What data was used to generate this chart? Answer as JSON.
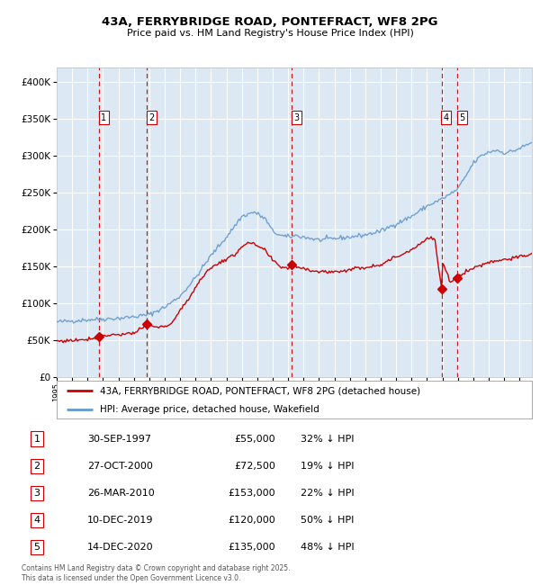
{
  "title": "43A, FERRYBRIDGE ROAD, PONTEFRACT, WF8 2PG",
  "subtitle": "Price paid vs. HM Land Registry's House Price Index (HPI)",
  "footer": "Contains HM Land Registry data © Crown copyright and database right 2025.\nThis data is licensed under the Open Government Licence v3.0.",
  "legend_property": "43A, FERRYBRIDGE ROAD, PONTEFRACT, WF8 2PG (detached house)",
  "legend_hpi": "HPI: Average price, detached house, Wakefield",
  "background_color": "#dce9f5",
  "plot_bg_color": "#dce9f5",
  "grid_color": "#ffffff",
  "property_color": "#cc0000",
  "hpi_color": "#6699cc",
  "vline_color": "#cc0000",
  "transactions": [
    {
      "id": 1,
      "date_x": 1997.75,
      "price": 55000
    },
    {
      "id": 2,
      "date_x": 2000.83,
      "price": 72500
    },
    {
      "id": 3,
      "date_x": 2010.23,
      "price": 153000
    },
    {
      "id": 4,
      "date_x": 2019.94,
      "price": 120000
    },
    {
      "id": 5,
      "date_x": 2020.96,
      "price": 135000
    }
  ],
  "table_rows": [
    {
      "num": 1,
      "date": "30-SEP-1997",
      "price": "£55,000",
      "pct": "32% ↓ HPI"
    },
    {
      "num": 2,
      "date": "27-OCT-2000",
      "price": "£72,500",
      "pct": "19% ↓ HPI"
    },
    {
      "num": 3,
      "date": "26-MAR-2010",
      "price": "£153,000",
      "pct": "22% ↓ HPI"
    },
    {
      "num": 4,
      "date": "10-DEC-2019",
      "price": "£120,000",
      "pct": "50% ↓ HPI"
    },
    {
      "num": 5,
      "date": "14-DEC-2020",
      "price": "£135,000",
      "pct": "48% ↓ HPI"
    }
  ],
  "ylim": [
    0,
    420000
  ],
  "yticks": [
    0,
    50000,
    100000,
    150000,
    200000,
    250000,
    300000,
    350000,
    400000
  ],
  "xlim_start": 1995.0,
  "xlim_end": 2025.8,
  "hpi_key_years": [
    1995.0,
    1996.0,
    1997.0,
    1998.0,
    1999.0,
    2000.0,
    2001.0,
    2002.0,
    2003.0,
    2004.0,
    2005.0,
    2006.0,
    2007.0,
    2007.8,
    2008.5,
    2009.0,
    2009.5,
    2010.0,
    2010.5,
    2011.0,
    2012.0,
    2013.0,
    2014.0,
    2015.0,
    2016.0,
    2017.0,
    2018.0,
    2019.0,
    2019.5,
    2020.0,
    2020.5,
    2021.0,
    2021.5,
    2022.0,
    2022.5,
    2023.0,
    2023.5,
    2024.0,
    2024.5,
    2025.0,
    2025.8
  ],
  "hpi_key_vals": [
    75000,
    76500,
    78000,
    79000,
    80000,
    82000,
    85000,
    95000,
    110000,
    135000,
    165000,
    190000,
    218000,
    224000,
    215000,
    198000,
    192000,
    190000,
    192000,
    190000,
    186000,
    188000,
    190000,
    193000,
    198000,
    208000,
    218000,
    232000,
    237000,
    242000,
    248000,
    255000,
    272000,
    290000,
    300000,
    305000,
    308000,
    304000,
    306000,
    310000,
    318000
  ],
  "prop_key_years": [
    1995.0,
    1995.5,
    1996.0,
    1996.5,
    1997.0,
    1997.5,
    1997.75,
    1998.0,
    1998.5,
    1999.0,
    1999.5,
    2000.0,
    2000.5,
    2000.83,
    2001.0,
    2001.5,
    2002.0,
    2002.5,
    2003.0,
    2003.5,
    2004.0,
    2004.5,
    2005.0,
    2005.5,
    2006.0,
    2006.5,
    2007.0,
    2007.5,
    2008.0,
    2008.5,
    2009.0,
    2009.5,
    2010.0,
    2010.23,
    2010.5,
    2011.0,
    2011.5,
    2012.0,
    2012.5,
    2013.0,
    2013.5,
    2014.0,
    2014.5,
    2015.0,
    2015.5,
    2016.0,
    2016.5,
    2017.0,
    2017.5,
    2018.0,
    2018.3,
    2018.7,
    2019.0,
    2019.5,
    2019.94,
    2020.0,
    2020.5,
    2020.96,
    2021.0,
    2021.5,
    2022.0,
    2022.5,
    2023.0,
    2023.5,
    2024.0,
    2024.5,
    2025.0,
    2025.8
  ],
  "prop_key_vals": [
    49000,
    49500,
    50000,
    51000,
    52000,
    53500,
    55000,
    56500,
    57500,
    58000,
    59000,
    60000,
    65000,
    72500,
    70000,
    68000,
    68000,
    75000,
    90000,
    105000,
    122000,
    138000,
    148000,
    155000,
    160000,
    165000,
    178000,
    182000,
    178000,
    172000,
    158000,
    150000,
    148000,
    153000,
    150000,
    148000,
    145000,
    143000,
    143000,
    143000,
    144000,
    146000,
    148000,
    149000,
    151000,
    153000,
    158000,
    163000,
    168000,
    173000,
    178000,
    183000,
    188000,
    188000,
    120000,
    155000,
    130000,
    135000,
    138000,
    143000,
    148000,
    152000,
    156000,
    158000,
    160000,
    161000,
    163000,
    167000
  ]
}
